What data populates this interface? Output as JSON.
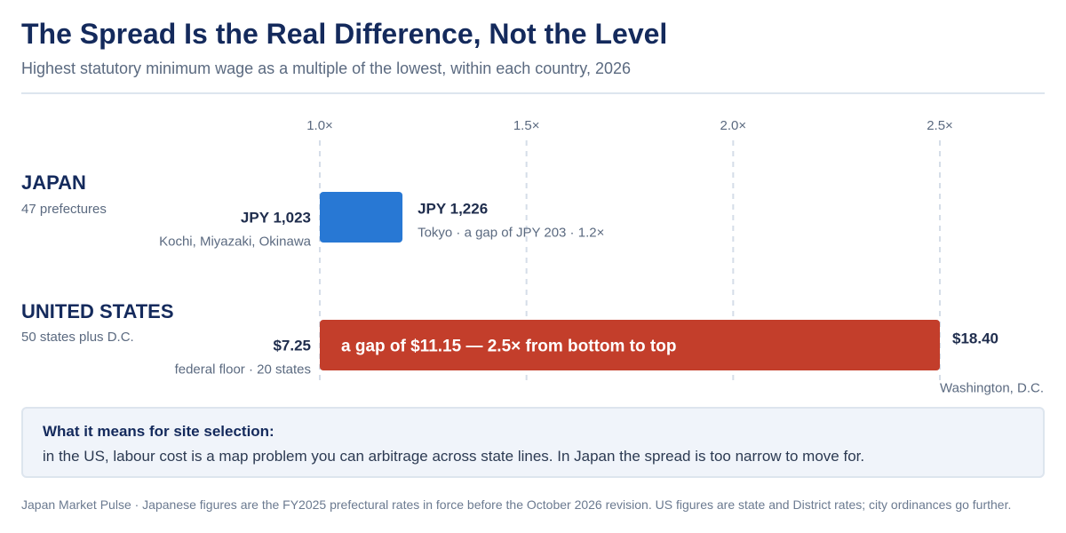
{
  "header": {
    "title": "The Spread Is the Real Difference, Not the Level",
    "subtitle": "Highest statutory minimum wage as a multiple of the lowest, within each country, 2026"
  },
  "chart_data": {
    "type": "bar",
    "orientation": "horizontal",
    "x_ticks": [
      "1.0×",
      "1.5×",
      "2.0×",
      "2.5×"
    ],
    "x_tick_values": [
      1.0,
      1.5,
      2.0,
      2.5
    ],
    "xlim": [
      1.0,
      2.5
    ],
    "grid": true,
    "rows": [
      {
        "name": "JAPAN",
        "sub": "47 prefectures",
        "start": 1.0,
        "end": 1.2,
        "color": "#2878d4",
        "low_value": "JPY 1,023",
        "low_note": "Kochi, Miyazaki, Okinawa",
        "high_value": "JPY 1,226",
        "high_note": "Tokyo · a gap of JPY 203 · 1.2×",
        "bar_label": ""
      },
      {
        "name": "UNITED STATES",
        "sub": "50 states plus D.C.",
        "start": 1.0,
        "end": 2.5,
        "color": "#c33e2b",
        "low_value": "$7.25",
        "low_note": "federal floor · 20 states",
        "high_value": "$18.40",
        "high_note": "Washington, D.C.",
        "bar_label": "a gap of $11.15 — 2.5× from bottom to top"
      }
    ]
  },
  "callout": {
    "heading": "What it means for site selection:",
    "body": "in the US, labour cost is a map problem you can arbitrage across state lines. In Japan the spread is too narrow to move for."
  },
  "footer": {
    "text": "Japan Market Pulse · Japanese figures are the FY2025 prefectural rates in force before the October 2026 revision. US figures are state and District rates; city ordinances go further."
  }
}
